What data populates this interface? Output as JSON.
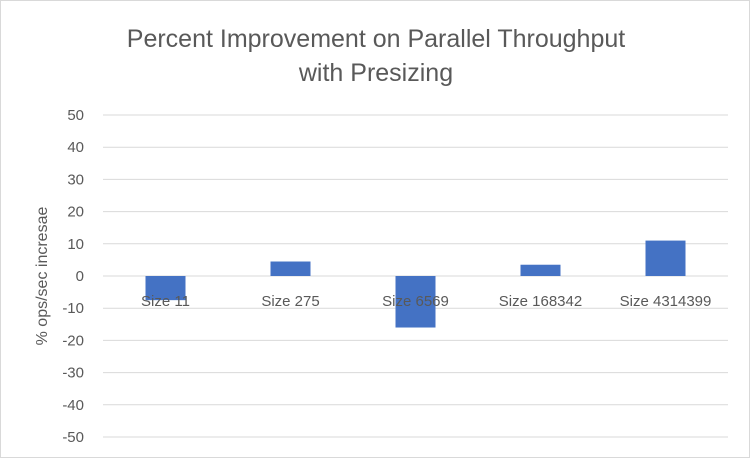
{
  "chart_data": {
    "type": "bar",
    "title_lines": [
      "Percent Improvement on Parallel Throughput",
      "with Presizing"
    ],
    "xlabel": "",
    "ylabel": "% ops/sec incresae",
    "categories": [
      "Size 11",
      "Size 275",
      "Size 6569",
      "Size 168342",
      "Size 4314399"
    ],
    "values": [
      -7.5,
      4.5,
      -16,
      3.5,
      11
    ],
    "ylim": [
      -50,
      50
    ],
    "yticks": [
      50,
      40,
      30,
      20,
      10,
      0,
      -10,
      -20,
      -30,
      -40,
      -50
    ],
    "grid": true,
    "legend": "none",
    "bar_color": "#4472C4"
  }
}
